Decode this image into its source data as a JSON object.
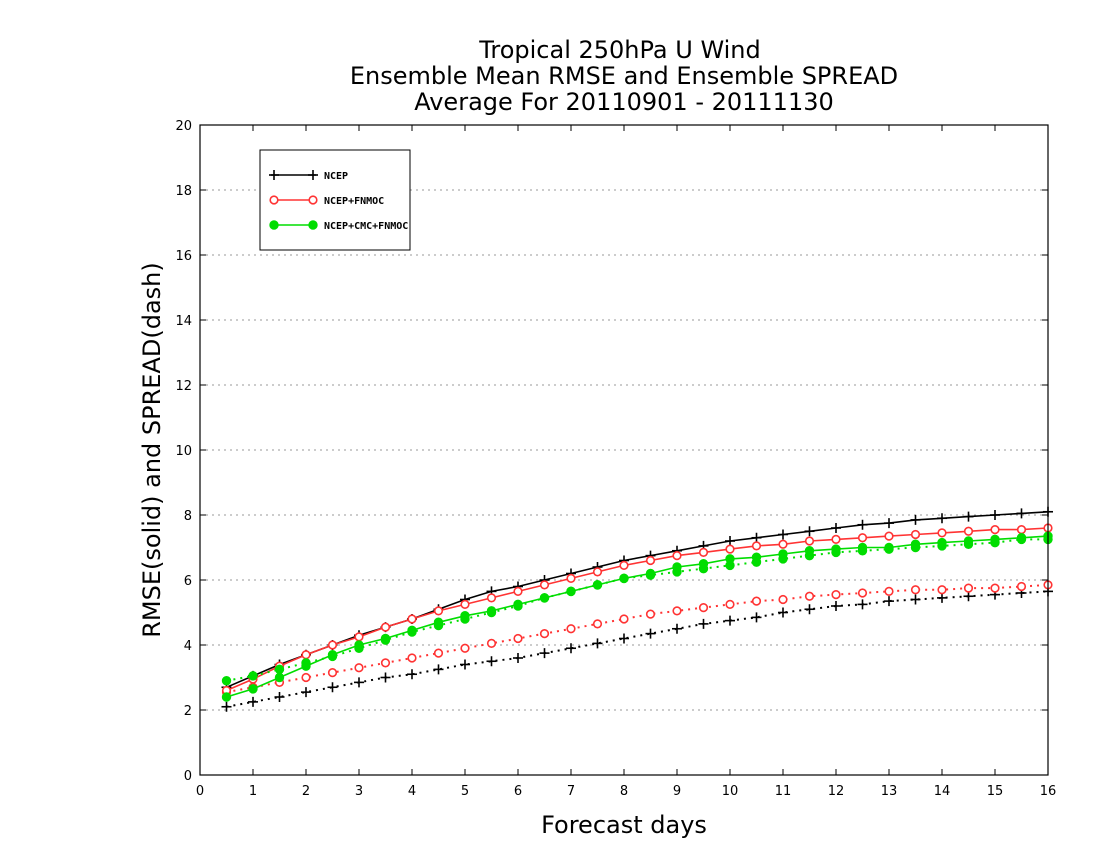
{
  "chart_data": {
    "type": "line",
    "title": [
      "Tropical 250hPa U Wind",
      "Ensemble Mean RMSE and Ensemble SPREAD",
      "Average For 20110901 - 20111130"
    ],
    "xlabel": "Forecast days",
    "ylabel": "RMSE(solid) and SPREAD(dash)",
    "xlim": [
      0,
      16
    ],
    "ylim": [
      0,
      20
    ],
    "x_ticks": [
      "0",
      "1",
      "2",
      "3",
      "4",
      "5",
      "6",
      "7",
      "8",
      "9",
      "10",
      "11",
      "12",
      "13",
      "14",
      "15",
      "16"
    ],
    "y_ticks": [
      "0",
      "2",
      "4",
      "6",
      "8",
      "10",
      "12",
      "14",
      "16",
      "18",
      "20"
    ],
    "grid": "horizontal dotted",
    "legend_position": "top-left",
    "x": [
      0.5,
      1,
      1.5,
      2,
      2.5,
      3,
      3.5,
      4,
      4.5,
      5,
      5.5,
      6,
      6.5,
      7,
      7.5,
      8,
      8.5,
      9,
      9.5,
      10,
      10.5,
      11,
      11.5,
      12,
      12.5,
      13,
      13.5,
      14,
      14.5,
      15,
      15.5,
      16
    ],
    "series": [
      {
        "name": "NCEP",
        "color": "#000000",
        "marker": "plus",
        "rmse": [
          2.7,
          3.05,
          3.4,
          3.7,
          4.0,
          4.3,
          4.55,
          4.8,
          5.1,
          5.4,
          5.65,
          5.8,
          6.0,
          6.2,
          6.4,
          6.6,
          6.75,
          6.9,
          7.05,
          7.2,
          7.3,
          7.4,
          7.5,
          7.6,
          7.7,
          7.75,
          7.85,
          7.9,
          7.95,
          8.0,
          8.05,
          8.1
        ],
        "spread": [
          2.1,
          2.25,
          2.4,
          2.55,
          2.7,
          2.85,
          3.0,
          3.1,
          3.25,
          3.4,
          3.5,
          3.6,
          3.75,
          3.9,
          4.05,
          4.2,
          4.35,
          4.5,
          4.65,
          4.75,
          4.85,
          5.0,
          5.1,
          5.2,
          5.25,
          5.35,
          5.4,
          5.45,
          5.5,
          5.55,
          5.6,
          5.65
        ]
      },
      {
        "name": "NCEP+FNMOC",
        "color": "#ff3333",
        "marker": "open-circle",
        "rmse": [
          2.6,
          2.95,
          3.35,
          3.7,
          4.0,
          4.25,
          4.55,
          4.8,
          5.05,
          5.25,
          5.45,
          5.65,
          5.85,
          6.05,
          6.25,
          6.45,
          6.6,
          6.75,
          6.85,
          6.95,
          7.05,
          7.1,
          7.2,
          7.25,
          7.3,
          7.35,
          7.4,
          7.45,
          7.5,
          7.55,
          7.55,
          7.6
        ],
        "spread": [
          2.55,
          2.7,
          2.85,
          3.0,
          3.15,
          3.3,
          3.45,
          3.6,
          3.75,
          3.9,
          4.05,
          4.2,
          4.35,
          4.5,
          4.65,
          4.8,
          4.95,
          5.05,
          5.15,
          5.25,
          5.35,
          5.4,
          5.5,
          5.55,
          5.6,
          5.65,
          5.7,
          5.7,
          5.75,
          5.75,
          5.8,
          5.85
        ]
      },
      {
        "name": "NCEP+CMC+FNMOC",
        "color": "#00dd00",
        "marker": "filled-circle",
        "rmse": [
          2.4,
          2.65,
          3.0,
          3.35,
          3.7,
          4.0,
          4.2,
          4.45,
          4.7,
          4.9,
          5.05,
          5.25,
          5.45,
          5.65,
          5.85,
          6.05,
          6.2,
          6.4,
          6.5,
          6.65,
          6.7,
          6.8,
          6.9,
          6.95,
          7.0,
          7.0,
          7.1,
          7.15,
          7.2,
          7.25,
          7.3,
          7.35
        ],
        "spread": [
          2.9,
          3.05,
          3.25,
          3.45,
          3.65,
          3.9,
          4.15,
          4.4,
          4.6,
          4.8,
          5.0,
          5.2,
          5.45,
          5.65,
          5.85,
          6.05,
          6.15,
          6.25,
          6.35,
          6.45,
          6.55,
          6.65,
          6.75,
          6.85,
          6.9,
          6.95,
          7.0,
          7.05,
          7.1,
          7.15,
          7.25,
          7.25
        ]
      }
    ]
  }
}
